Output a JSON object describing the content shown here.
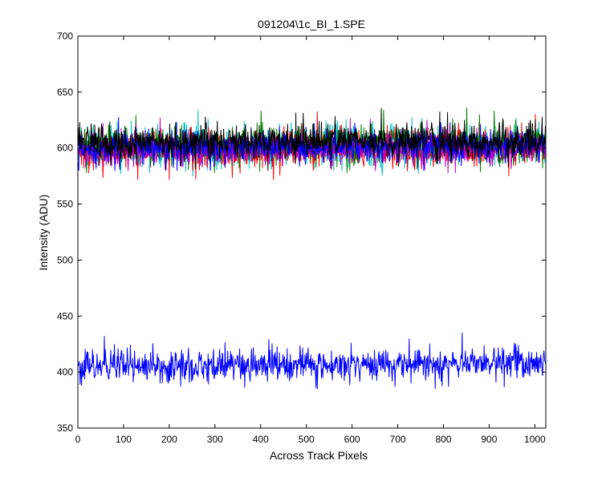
{
  "chart_data": {
    "type": "line",
    "title": "091204\\1c_BI_1.SPE",
    "xlabel": "Across Track Pixels",
    "ylabel": "Intensity (ADU)",
    "xlim": [
      0,
      1024
    ],
    "ylim": [
      350,
      700
    ],
    "xticks": [
      0,
      100,
      200,
      300,
      400,
      500,
      600,
      700,
      800,
      900,
      1000
    ],
    "yticks": [
      350,
      400,
      450,
      500,
      550,
      600,
      650,
      700
    ],
    "grid": false,
    "legend": "none",
    "series": [
      {
        "color": "#0000ff",
        "mean": 404,
        "mean_end": 409,
        "noise": 7,
        "min": 385,
        "max": 435
      },
      {
        "color": "#00bfbf",
        "mean": 600,
        "mean_end": 604,
        "noise": 9,
        "min": 575,
        "max": 648
      },
      {
        "color": "#ff0000",
        "mean": 597,
        "mean_end": 600,
        "noise": 8,
        "min": 572,
        "max": 640
      },
      {
        "color": "#008000",
        "mean": 602,
        "mean_end": 604,
        "noise": 8,
        "min": 578,
        "max": 640
      },
      {
        "color": "#bf00bf",
        "mean": 598,
        "mean_end": 600,
        "noise": 7,
        "min": 578,
        "max": 632
      },
      {
        "color": "#0000ff",
        "mean": 600,
        "mean_end": 602,
        "noise": 7,
        "min": 580,
        "max": 632
      },
      {
        "color": "#000000",
        "mean": 605,
        "mean_end": 607,
        "noise": 8,
        "min": 580,
        "max": 651
      }
    ]
  }
}
